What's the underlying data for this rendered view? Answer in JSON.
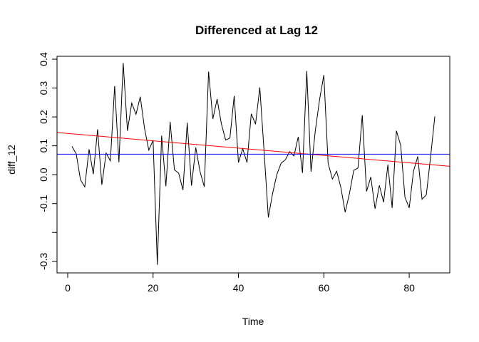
{
  "chart_data": {
    "type": "line",
    "title": "Differenced at Lag 12",
    "xlabel": "Time",
    "ylabel": "diff_12",
    "xlim": [
      -2.5,
      89.5
    ],
    "ylim": [
      -0.34,
      0.41
    ],
    "xticks": [
      0,
      20,
      40,
      60,
      80
    ],
    "xtick_labels": [
      "0",
      "20",
      "40",
      "60",
      "80"
    ],
    "yticks": [
      -0.3,
      -0.1,
      0.0,
      0.1,
      0.2,
      0.3,
      0.4
    ],
    "ytick_labels": [
      "-0.3",
      "-0.1",
      "0.0",
      "0.1",
      "0.2",
      "0.3",
      "0.4"
    ],
    "yticks_unlabeled": [
      -0.2
    ],
    "grid": false,
    "legend": "none",
    "series": [
      {
        "color": "#000000",
        "x": [
          1,
          2,
          3,
          4,
          5,
          6,
          7,
          8,
          9,
          10,
          11,
          12,
          13,
          14,
          15,
          16,
          17,
          18,
          19,
          20,
          21,
          22,
          23,
          24,
          25,
          26,
          27,
          28,
          29,
          30,
          31,
          32,
          33,
          34,
          35,
          36,
          37,
          38,
          39,
          40,
          41,
          42,
          43,
          44,
          45,
          46,
          47,
          48,
          49,
          50,
          51,
          52,
          53,
          54,
          55,
          56,
          57,
          58,
          59,
          60,
          61,
          62,
          63,
          64,
          65,
          66,
          67,
          68,
          69,
          70,
          71,
          72,
          73,
          74,
          75,
          76,
          77,
          78,
          79,
          80,
          81,
          82,
          83,
          84,
          85,
          86
        ],
        "values": [
          0.098,
          0.072,
          -0.018,
          -0.042,
          0.088,
          0.002,
          0.157,
          -0.035,
          0.075,
          0.048,
          0.307,
          0.043,
          0.387,
          0.152,
          0.248,
          0.209,
          0.27,
          0.16,
          0.085,
          0.119,
          -0.312,
          0.135,
          -0.04,
          0.183,
          0.017,
          0.005,
          -0.053,
          0.18,
          -0.038,
          0.094,
          0.011,
          -0.042,
          0.357,
          0.193,
          0.262,
          0.176,
          0.12,
          0.127,
          0.273,
          0.042,
          0.09,
          0.042,
          0.211,
          0.175,
          0.302,
          0.082,
          -0.148,
          -0.065,
          0.001,
          0.04,
          0.052,
          0.08,
          0.065,
          0.131,
          0.006,
          0.359,
          0.01,
          0.152,
          0.26,
          0.345,
          0.04,
          -0.015,
          0.012,
          -0.045,
          -0.13,
          -0.065,
          0.015,
          0.023,
          0.206,
          -0.058,
          -0.008,
          -0.118,
          -0.037,
          -0.095,
          0.035,
          -0.115,
          0.152,
          0.102,
          -0.078,
          -0.115,
          0.012,
          0.063,
          -0.085,
          -0.07,
          0.061,
          0.202
        ]
      }
    ],
    "reference_lines": [
      {
        "kind": "trend",
        "color": "#ff0000",
        "x": [
          -2.5,
          89.5
        ],
        "values": [
          0.146,
          0.029
        ]
      },
      {
        "kind": "horizontal",
        "color": "#0000ff",
        "value": 0.071
      }
    ]
  }
}
